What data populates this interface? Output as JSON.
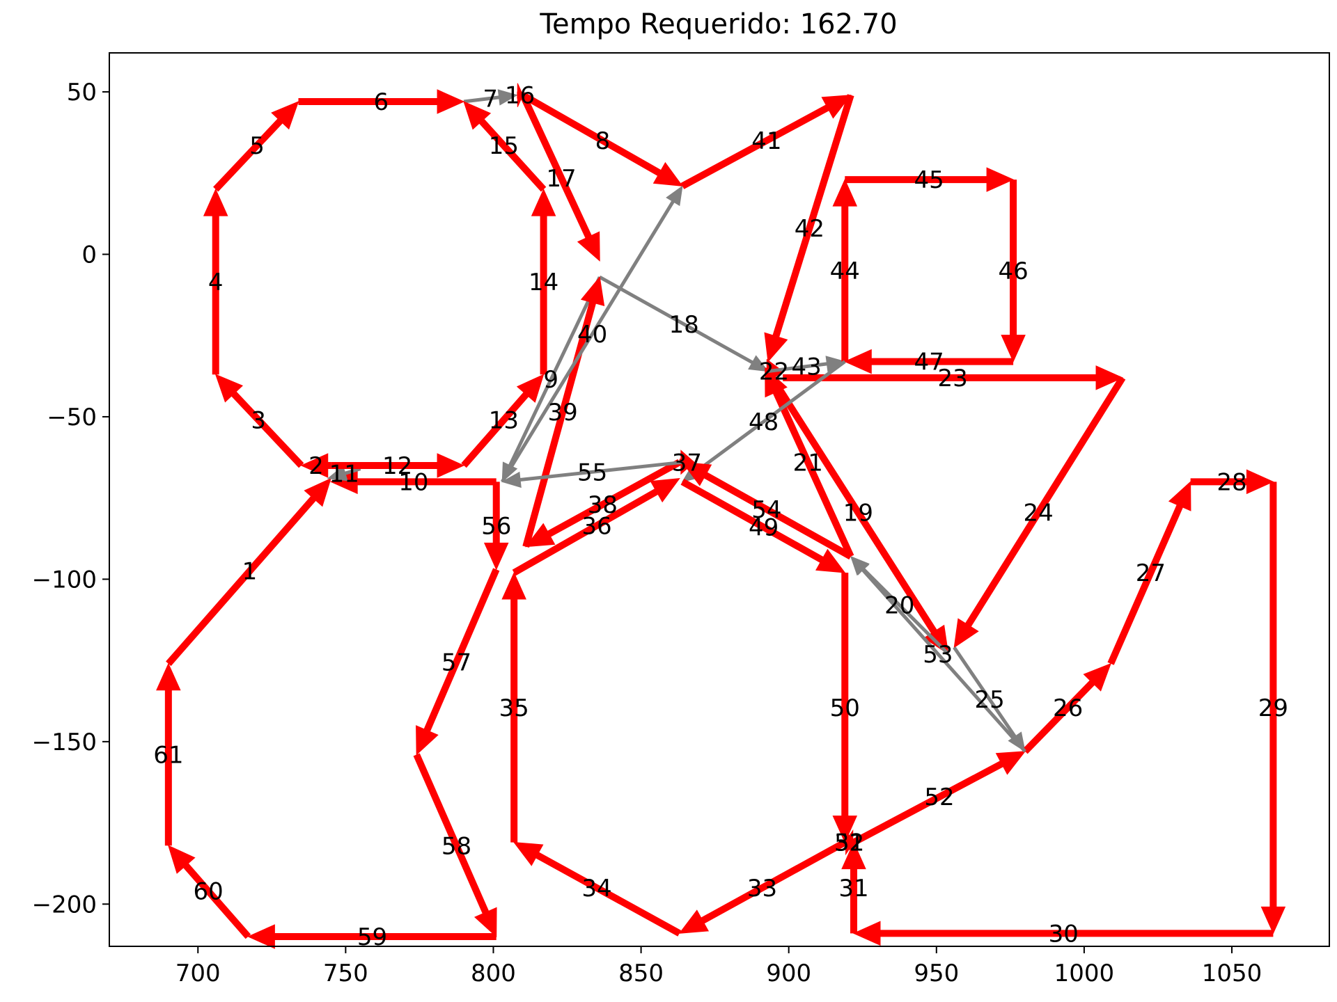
{
  "chart_data": {
    "type": "line",
    "title": "Tempo Requerido: 162.70",
    "xlabel": "",
    "ylabel": "",
    "xlim": [
      670,
      1083
    ],
    "ylim": [
      -213,
      62
    ],
    "xticks": [
      700,
      750,
      800,
      850,
      900,
      950,
      1000,
      1050
    ],
    "yticks": [
      50,
      0,
      -50,
      -100,
      -150,
      -200
    ],
    "ytick_labels": [
      "50",
      "0",
      "−50",
      "−100",
      "−150",
      "−200"
    ],
    "grid": false,
    "colors": {
      "route": "#ff0000",
      "transfer": "#808080"
    },
    "segments": [
      {
        "id": "1",
        "kind": "route",
        "from": [
          690,
          -126
        ],
        "to": [
          745,
          -69
        ]
      },
      {
        "id": "2",
        "kind": "route",
        "from": [
          745,
          -65
        ],
        "to": [
          735,
          -65
        ]
      },
      {
        "id": "3",
        "kind": "route",
        "from": [
          735,
          -65
        ],
        "to": [
          706,
          -37
        ]
      },
      {
        "id": "4",
        "kind": "route",
        "from": [
          706,
          -37
        ],
        "to": [
          706,
          20
        ]
      },
      {
        "id": "5",
        "kind": "route",
        "from": [
          706,
          20
        ],
        "to": [
          734,
          47
        ]
      },
      {
        "id": "6",
        "kind": "route",
        "from": [
          734,
          47
        ],
        "to": [
          790,
          47
        ]
      },
      {
        "id": "7",
        "kind": "transfer",
        "from": [
          790,
          47
        ],
        "to": [
          808,
          49
        ]
      },
      {
        "id": "8",
        "kind": "route",
        "from": [
          810,
          49
        ],
        "to": [
          864,
          21
        ]
      },
      {
        "id": "9",
        "kind": "transfer",
        "from": [
          836,
          -7
        ],
        "to": [
          803,
          -70
        ]
      },
      {
        "id": "10",
        "kind": "route",
        "from": [
          801,
          -70
        ],
        "to": [
          745,
          -70
        ]
      },
      {
        "id": "11",
        "kind": "transfer",
        "from": [
          755,
          -66
        ],
        "to": [
          744,
          -69
        ]
      },
      {
        "id": "12",
        "kind": "route",
        "from": [
          745,
          -65
        ],
        "to": [
          790,
          -65
        ]
      },
      {
        "id": "13",
        "kind": "route",
        "from": [
          790,
          -65
        ],
        "to": [
          817,
          -37
        ]
      },
      {
        "id": "14",
        "kind": "route",
        "from": [
          817,
          -37
        ],
        "to": [
          817,
          20
        ]
      },
      {
        "id": "15",
        "kind": "route",
        "from": [
          817,
          20
        ],
        "to": [
          790,
          47
        ]
      },
      {
        "id": "16",
        "kind": "route",
        "from": [
          808,
          49
        ],
        "to": [
          810,
          49
        ]
      },
      {
        "id": "17",
        "kind": "route",
        "from": [
          810,
          49
        ],
        "to": [
          836,
          -2
        ]
      },
      {
        "id": "18",
        "kind": "transfer",
        "from": [
          836,
          -7
        ],
        "to": [
          893,
          -36
        ]
      },
      {
        "id": "19",
        "kind": "route",
        "from": [
          893,
          -36
        ],
        "to": [
          954,
          -123
        ]
      },
      {
        "id": "20",
        "kind": "transfer",
        "from": [
          954,
          -123
        ],
        "to": [
          921,
          -93
        ]
      },
      {
        "id": "21",
        "kind": "route",
        "from": [
          921,
          -93
        ],
        "to": [
          892,
          -35
        ]
      },
      {
        "id": "22",
        "kind": "route",
        "from": [
          892,
          -36
        ],
        "to": [
          898,
          -36
        ]
      },
      {
        "id": "23",
        "kind": "route",
        "from": [
          898,
          -38
        ],
        "to": [
          1013,
          -38
        ]
      },
      {
        "id": "24",
        "kind": "route",
        "from": [
          1013,
          -38
        ],
        "to": [
          956,
          -121
        ]
      },
      {
        "id": "25",
        "kind": "transfer",
        "from": [
          956,
          -121
        ],
        "to": [
          980,
          -153
        ]
      },
      {
        "id": "26",
        "kind": "route",
        "from": [
          980,
          -153
        ],
        "to": [
          1009,
          -126
        ]
      },
      {
        "id": "27",
        "kind": "route",
        "from": [
          1009,
          -126
        ],
        "to": [
          1036,
          -70
        ]
      },
      {
        "id": "28",
        "kind": "route",
        "from": [
          1036,
          -70
        ],
        "to": [
          1064,
          -70
        ]
      },
      {
        "id": "29",
        "kind": "route",
        "from": [
          1064,
          -70
        ],
        "to": [
          1064,
          -209
        ]
      },
      {
        "id": "30",
        "kind": "route",
        "from": [
          1064,
          -209
        ],
        "to": [
          922,
          -209
        ]
      },
      {
        "id": "31",
        "kind": "route",
        "from": [
          922,
          -209
        ],
        "to": [
          922,
          -181
        ]
      },
      {
        "id": "32",
        "kind": "route",
        "from": [
          922,
          -181
        ],
        "to": [
          919,
          -181
        ]
      },
      {
        "id": "33",
        "kind": "route",
        "from": [
          919,
          -181
        ],
        "to": [
          863,
          -209
        ]
      },
      {
        "id": "34",
        "kind": "route",
        "from": [
          863,
          -209
        ],
        "to": [
          807,
          -181
        ]
      },
      {
        "id": "35",
        "kind": "route",
        "from": [
          807,
          -181
        ],
        "to": [
          807,
          -98
        ]
      },
      {
        "id": "36",
        "kind": "route",
        "from": [
          807,
          -98
        ],
        "to": [
          863,
          -69
        ]
      },
      {
        "id": "37",
        "kind": "route",
        "from": [
          863,
          -64
        ],
        "to": [
          868,
          -64
        ]
      },
      {
        "id": "38",
        "kind": "route",
        "from": [
          863,
          -64
        ],
        "to": [
          811,
          -90
        ]
      },
      {
        "id": "39",
        "kind": "route",
        "from": [
          811,
          -90
        ],
        "to": [
          836,
          -7
        ]
      },
      {
        "id": "40",
        "kind": "transfer",
        "from": [
          803,
          -70
        ],
        "to": [
          864,
          21
        ]
      },
      {
        "id": "41",
        "kind": "route",
        "from": [
          864,
          21
        ],
        "to": [
          921,
          49
        ]
      },
      {
        "id": "42",
        "kind": "route",
        "from": [
          921,
          49
        ],
        "to": [
          893,
          -33
        ]
      },
      {
        "id": "43",
        "kind": "transfer",
        "from": [
          893,
          -36
        ],
        "to": [
          919,
          -33
        ]
      },
      {
        "id": "44",
        "kind": "route",
        "from": [
          919,
          -33
        ],
        "to": [
          919,
          23
        ]
      },
      {
        "id": "45",
        "kind": "route",
        "from": [
          919,
          23
        ],
        "to": [
          976,
          23
        ]
      },
      {
        "id": "46",
        "kind": "route",
        "from": [
          976,
          23
        ],
        "to": [
          976,
          -33
        ]
      },
      {
        "id": "47",
        "kind": "route",
        "from": [
          976,
          -33
        ],
        "to": [
          919,
          -33
        ]
      },
      {
        "id": "48",
        "kind": "transfer",
        "from": [
          919,
          -33
        ],
        "to": [
          864,
          -70
        ]
      },
      {
        "id": "49",
        "kind": "route",
        "from": [
          864,
          -70
        ],
        "to": [
          919,
          -98
        ]
      },
      {
        "id": "50",
        "kind": "route",
        "from": [
          919,
          -98
        ],
        "to": [
          919,
          -181
        ]
      },
      {
        "id": "51",
        "kind": "route",
        "from": [
          919,
          -181
        ],
        "to": [
          922,
          -181
        ]
      },
      {
        "id": "52",
        "kind": "route",
        "from": [
          922,
          -181
        ],
        "to": [
          980,
          -153
        ]
      },
      {
        "id": "53",
        "kind": "transfer",
        "from": [
          980,
          -153
        ],
        "to": [
          921,
          -93
        ]
      },
      {
        "id": "54",
        "kind": "route",
        "from": [
          921,
          -93
        ],
        "to": [
          864,
          -64
        ]
      },
      {
        "id": "55",
        "kind": "transfer",
        "from": [
          864,
          -64
        ],
        "to": [
          803,
          -70
        ]
      },
      {
        "id": "56",
        "kind": "route",
        "from": [
          801,
          -70
        ],
        "to": [
          801,
          -97
        ]
      },
      {
        "id": "57",
        "kind": "route",
        "from": [
          801,
          -97
        ],
        "to": [
          774,
          -154
        ]
      },
      {
        "id": "58",
        "kind": "route",
        "from": [
          774,
          -154
        ],
        "to": [
          801,
          -210
        ]
      },
      {
        "id": "59",
        "kind": "route",
        "from": [
          801,
          -210
        ],
        "to": [
          717,
          -210
        ]
      },
      {
        "id": "60",
        "kind": "route",
        "from": [
          717,
          -210
        ],
        "to": [
          690,
          -182
        ]
      },
      {
        "id": "61",
        "kind": "route",
        "from": [
          690,
          -182
        ],
        "to": [
          690,
          -126
        ]
      }
    ]
  }
}
